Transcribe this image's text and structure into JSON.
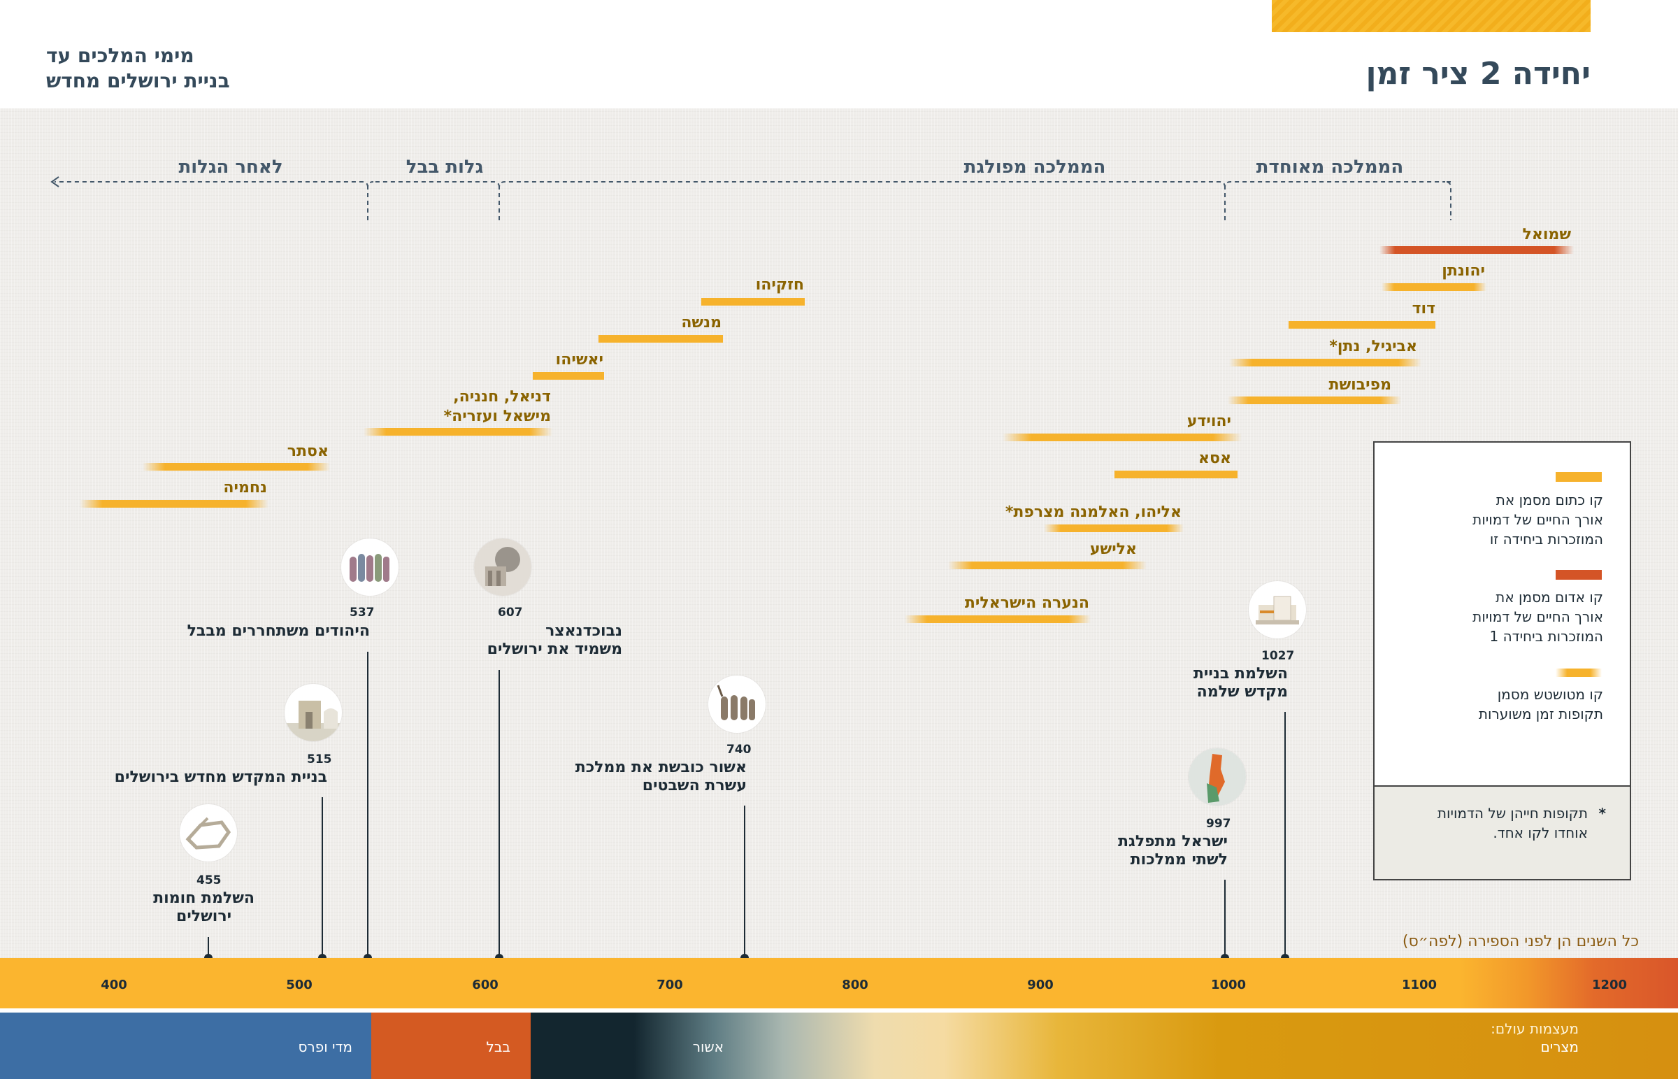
{
  "header": {
    "title": "יחידה 2 ציר זמן",
    "subtitle": "מימי המלכים עד\nבניית ירושלים מחדש"
  },
  "periods": [
    {
      "label": "הממלכה מאוחדת"
    },
    {
      "label": "הממלכה מפולגת"
    },
    {
      "label": "גלות בבל"
    },
    {
      "label": "לאחר הגלות"
    }
  ],
  "people": [
    {
      "name": "שמואל",
      "color": "red",
      "from": 1100,
      "to": 1020
    },
    {
      "name": "יהונתן",
      "color": "yellow",
      "from": 1080,
      "to": 1025
    },
    {
      "name": "דוד",
      "color": "yellow",
      "from": 1100,
      "to": 1030
    },
    {
      "name": "אביגיל, נתן*",
      "color": "yellow",
      "from": 1070,
      "to": 1000
    },
    {
      "name": "מפיבושת",
      "color": "yellow",
      "from": 1060,
      "to": 990
    },
    {
      "name": "יהוידע",
      "color": "yellow",
      "from": 1010,
      "to": 880
    },
    {
      "name": "אסא",
      "color": "yellow",
      "from": 1000,
      "to": 940
    },
    {
      "name": "אליהו, האלמנה מצרפת*",
      "color": "yellow",
      "from": 960,
      "to": 910
    },
    {
      "name": "אלישע",
      "color": "yellow",
      "from": 950,
      "to": 850
    },
    {
      "name": "הנערה הישראלית",
      "color": "yellow",
      "from": 940,
      "to": 840
    },
    {
      "name": "חזקיהו",
      "color": "yellow",
      "from": 770,
      "to": 720
    },
    {
      "name": "מנשה",
      "color": "yellow",
      "from": 730,
      "to": 660
    },
    {
      "name": "יאשיהו",
      "color": "yellow",
      "from": 660,
      "to": 620
    },
    {
      "name": "דניאל, חנניה,\nמישאל ועזריה*",
      "color": "yellow",
      "from": 620,
      "to": 540
    },
    {
      "name": "אסתר",
      "color": "yellow",
      "from": 520,
      "to": 430
    },
    {
      "name": "נחמיה",
      "color": "yellow",
      "from": 470,
      "to": 400
    }
  ],
  "events": [
    {
      "year": "1027",
      "text": "השלמת בניית\nמקדש שלמה",
      "icon": "temple-icon"
    },
    {
      "year": "997",
      "text": "ישראל מתפלגת\nלשתי ממלכות",
      "icon": "map-icon"
    },
    {
      "year": "740",
      "text": "אשור כובשת את ממלכת\nעשרת השבטים",
      "icon": "captives-icon"
    },
    {
      "year": "607",
      "text": "נבוכדנאצר\nמשמיד את ירושלים",
      "icon": "ruins-icon"
    },
    {
      "year": "537",
      "text": "היהודים משתחררים מבבל",
      "icon": "exiles-icon"
    },
    {
      "year": "515",
      "text": "בניית המקדש מחדש בירושלים",
      "icon": "rebuilt-temple-icon"
    },
    {
      "year": "455",
      "text": "השלמת חומות\nירושלים",
      "icon": "walls-icon"
    }
  ],
  "legend": {
    "solid_text": "קו כתום מסמן את\nאורך החיים של דמויות\nהמוזכרות ביחידה זו",
    "red_text": "קו אדום מסמן את\nאורך החיים של דמויות\nהמוזכרות ביחידה 1",
    "fade_text": "קו מטושטש מסמן\nתקופות זמן משוערות",
    "note_star": "*",
    "note_text": "תקופות חייהן של הדמויות\nאוחדו לקו אחד."
  },
  "years_note": "כל השנים הן לפני הספירה (לפה״ס)",
  "axis": {
    "ticks": [
      "1200",
      "1100",
      "1000",
      "900",
      "800",
      "700",
      "600",
      "500",
      "400"
    ]
  },
  "empires": [
    {
      "label": "מעצמות עולם:",
      "sub": "מצרים"
    },
    {
      "label": "אשור"
    },
    {
      "label": "בבל"
    },
    {
      "label": "מדי ופרס"
    }
  ],
  "colors": {
    "bar_yellow": "#f6b22c",
    "bar_red": "#d45426",
    "empire_persia": "#3d6ea4",
    "empire_babylon": "#d45a22",
    "empire_assyria": "#13262f",
    "empire_egypt": "#d99a10"
  }
}
